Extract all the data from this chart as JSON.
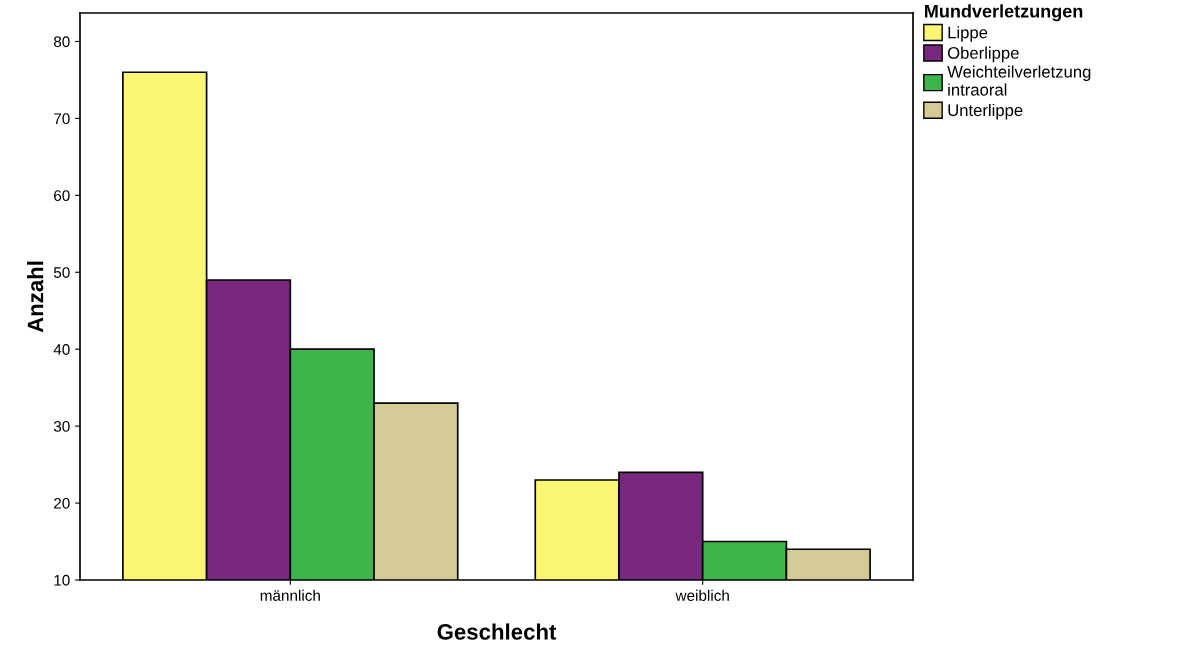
{
  "chart_data": {
    "type": "bar",
    "xlabel": "Geschlecht",
    "ylabel": "Anzahl",
    "legend_title": "Mundverletzungen",
    "categories": [
      "männlich",
      "weiblich"
    ],
    "series": [
      {
        "name": "Lippe",
        "color": "#faf673",
        "values": [
          76,
          23
        ]
      },
      {
        "name": "Oberlippe",
        "color": "#7a287f",
        "values": [
          49,
          24
        ]
      },
      {
        "name": "Weichteilverletzung\nintraoral",
        "color": "#3db54a",
        "values": [
          40,
          15
        ]
      },
      {
        "name": "Unterlippe",
        "color": "#d4cb94",
        "values": [
          33,
          14
        ]
      }
    ],
    "ylim": [
      10,
      83.7
    ],
    "yticks": [
      10,
      20,
      30,
      40,
      50,
      60,
      70,
      80
    ],
    "grid": false,
    "legend": "top right"
  }
}
